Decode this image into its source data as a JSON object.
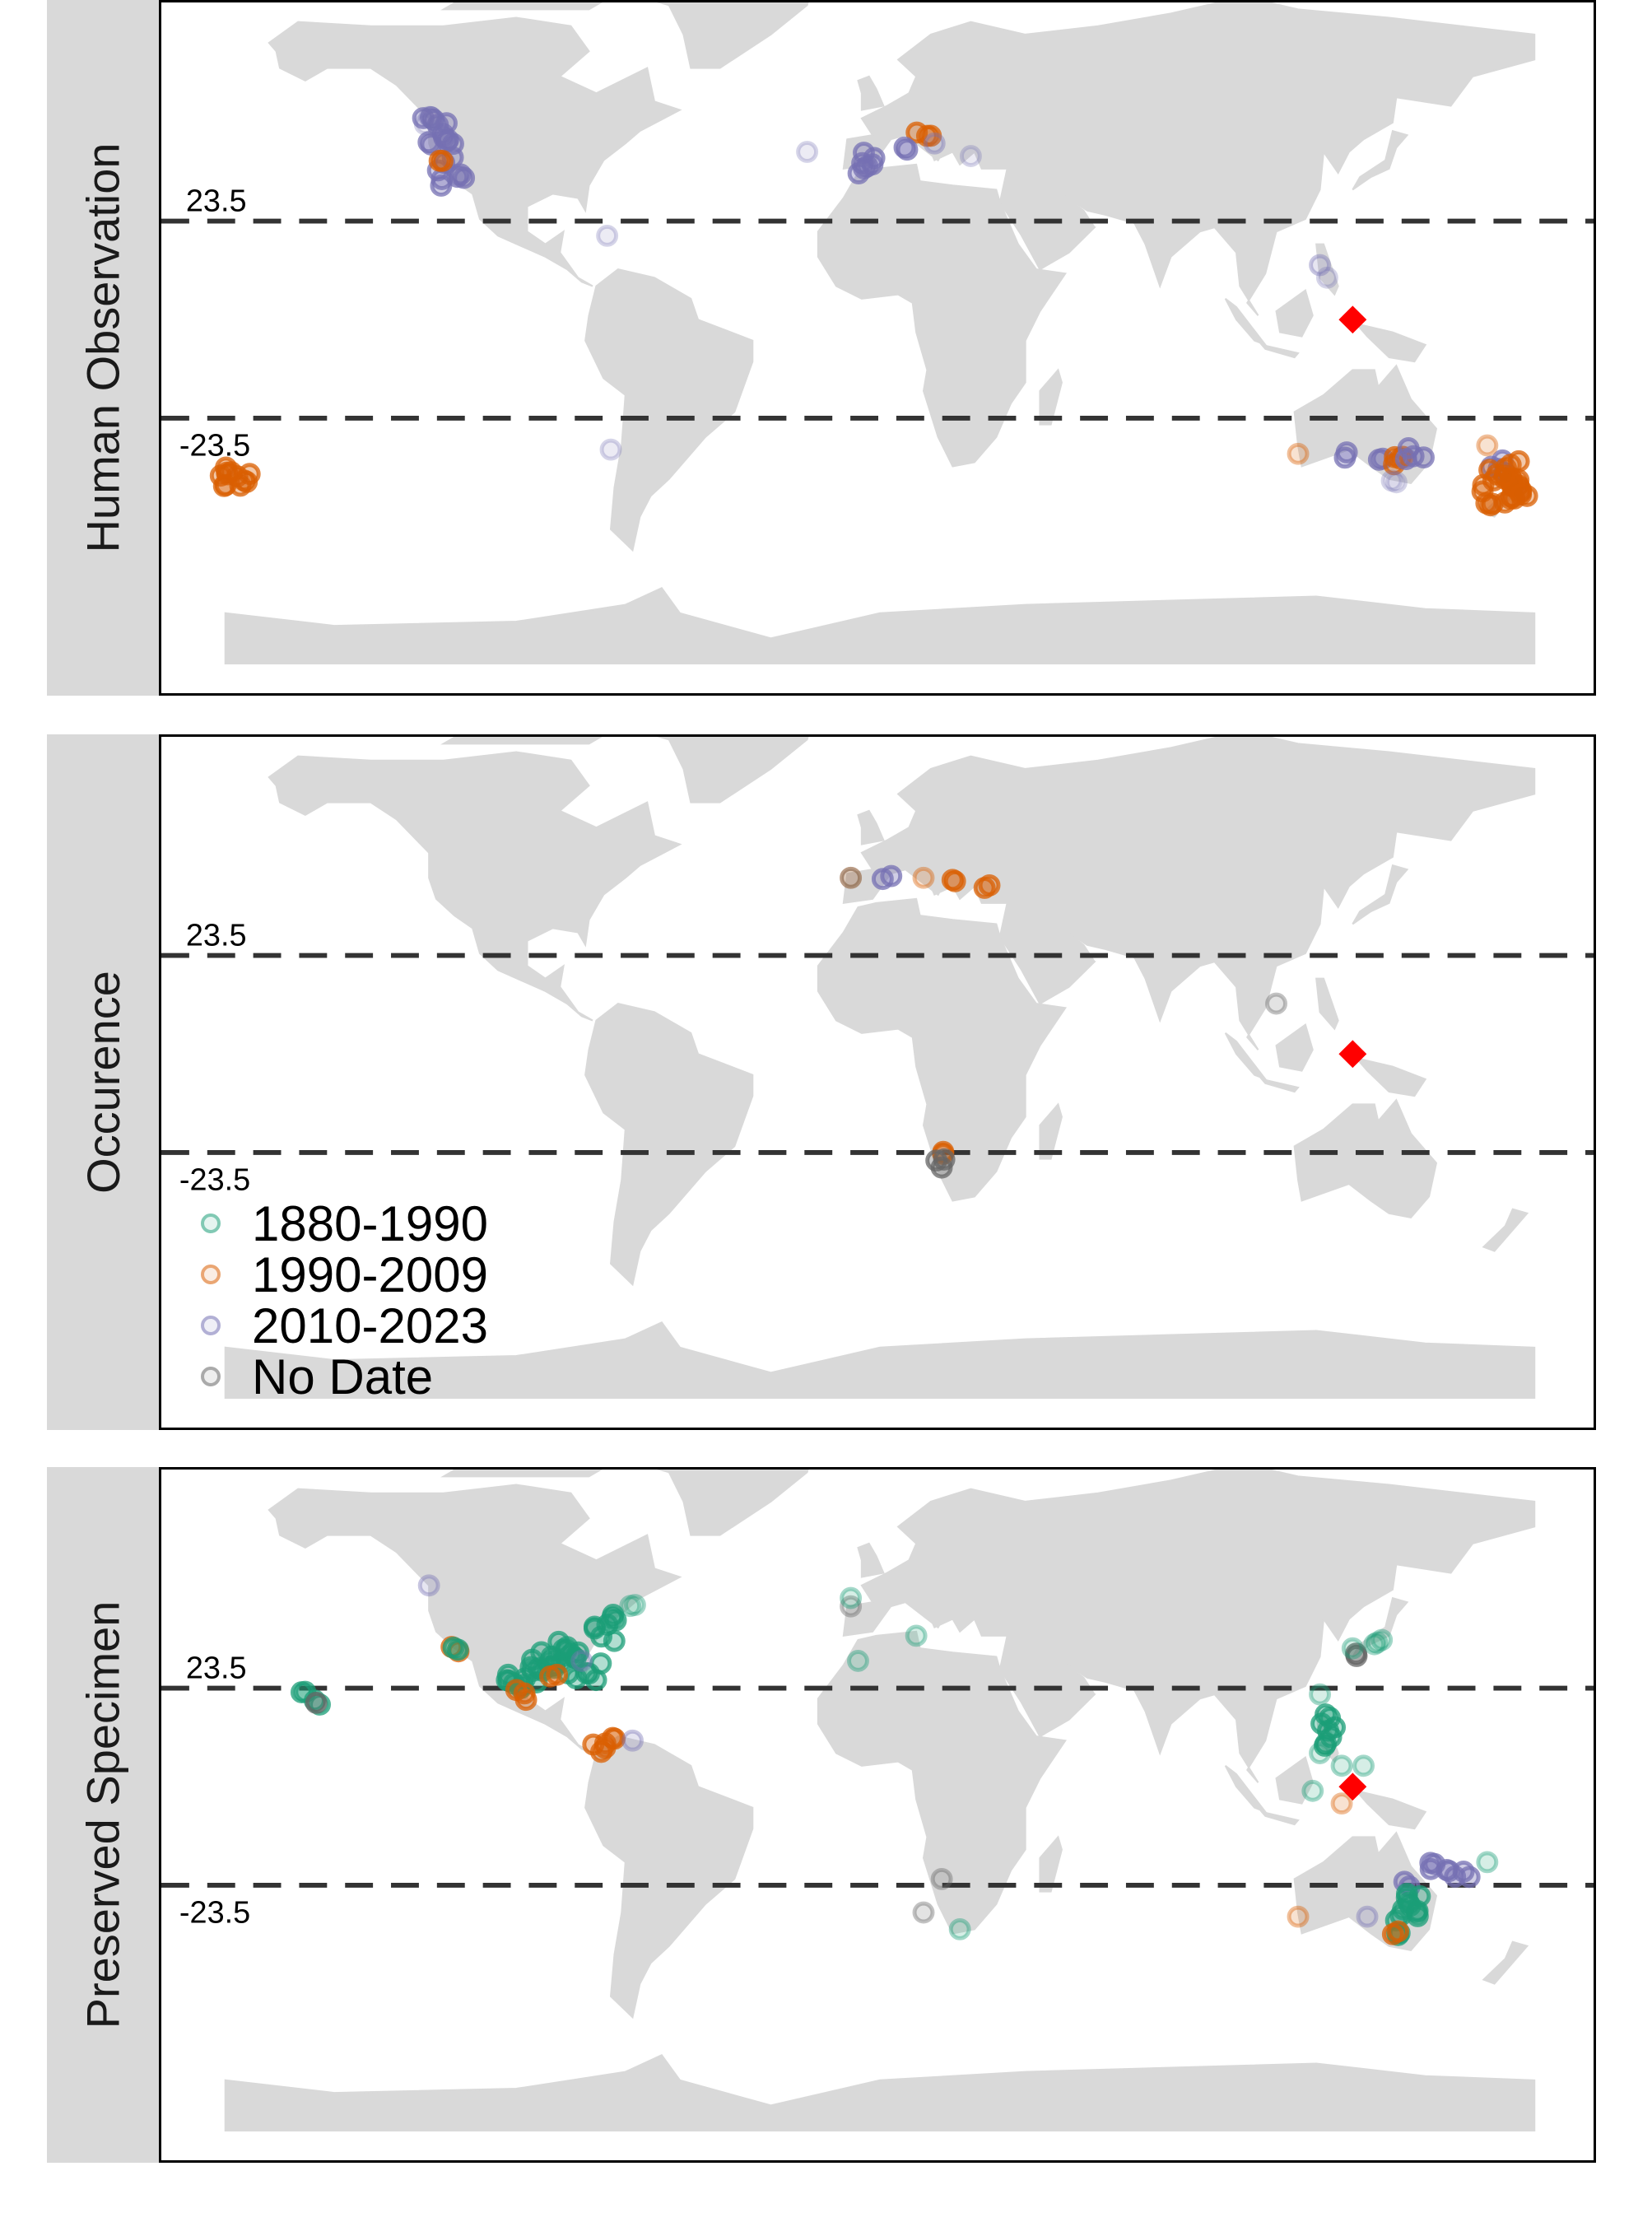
{
  "colors": {
    "land": "#d9d9d9",
    "c1880_1990": "#1b9e77",
    "c1990_2009": "#d95f02",
    "c2010_2023": "#7570b3",
    "cNoDate": "#666666",
    "marker": "#ff0000",
    "tropics_line": "#333333"
  },
  "tropics": {
    "north_label": "23.5",
    "south_label": "-23.5",
    "north_lat": 23.5,
    "south_lat": -23.5
  },
  "legend": {
    "items": [
      {
        "label": "1880-1990",
        "color_key": "c1880_1990"
      },
      {
        "label": "1990-2009",
        "color_key": "c1990_2009"
      },
      {
        "label": "2010-2023",
        "color_key": "c2010_2023"
      },
      {
        "label": "No Date",
        "color_key": "cNoDate"
      }
    ]
  },
  "panels": [
    {
      "label": "Human Observation",
      "marker": {
        "lon": 130,
        "lat": 0
      },
      "points": [
        {
          "lon": -124,
          "lat": 49,
          "p": "c2010_2023",
          "n": 3
        },
        {
          "lon": -122,
          "lat": 45,
          "p": "c2010_2023",
          "n": 5
        },
        {
          "lon": -121,
          "lat": 40,
          "p": "c2010_2023",
          "n": 6
        },
        {
          "lon": -118,
          "lat": 34,
          "p": "c2010_2023",
          "n": 6
        },
        {
          "lon": -120,
          "lat": 37,
          "p": "c1990_2009",
          "n": 2
        },
        {
          "lon": -124,
          "lat": 47,
          "p": "c2010_2023",
          "n": 3,
          "a": 0.3
        },
        {
          "lon": -2,
          "lat": 38,
          "p": "c2010_2023",
          "n": 4
        },
        {
          "lon": -4,
          "lat": 36,
          "p": "c2010_2023",
          "n": 3
        },
        {
          "lon": -20,
          "lat": 40,
          "p": "c2010_2023",
          "n": 1,
          "a": 0.3
        },
        {
          "lon": 12,
          "lat": 44,
          "p": "c1990_2009",
          "n": 3
        },
        {
          "lon": 8,
          "lat": 41,
          "p": "c2010_2023",
          "n": 2
        },
        {
          "lon": 15,
          "lat": 42,
          "p": "c2010_2023",
          "n": 1,
          "a": 0.4
        },
        {
          "lon": 25,
          "lat": 39,
          "p": "c2010_2023",
          "n": 1,
          "a": 0.3
        },
        {
          "lon": -75,
          "lat": 20,
          "p": "c2010_2023",
          "n": 1,
          "a": 0.3
        },
        {
          "lon": -74,
          "lat": -31,
          "p": "c2010_2023",
          "n": 1,
          "a": 0.3
        },
        {
          "lon": 121,
          "lat": 13,
          "p": "c2010_2023",
          "n": 1,
          "a": 0.4
        },
        {
          "lon": 123,
          "lat": 10,
          "p": "c2010_2023",
          "n": 1,
          "a": 0.3
        },
        {
          "lon": 115,
          "lat": -32,
          "p": "c1990_2009",
          "n": 1,
          "a": 0.4
        },
        {
          "lon": 128,
          "lat": -32,
          "p": "c2010_2023",
          "n": 2
        },
        {
          "lon": 138,
          "lat": -34,
          "p": "c2010_2023",
          "n": 2
        },
        {
          "lon": 144,
          "lat": -33,
          "p": "c1990_2009",
          "n": 4
        },
        {
          "lon": 147,
          "lat": -32,
          "p": "c2010_2023",
          "n": 4
        },
        {
          "lon": 141,
          "lat": -38,
          "p": "c2010_2023",
          "n": 2,
          "a": 0.3
        },
        {
          "lon": 170,
          "lat": -35,
          "p": "c2010_2023",
          "n": 4
        },
        {
          "lon": 172,
          "lat": -37,
          "p": "c1990_2009",
          "n": 10
        },
        {
          "lon": 170,
          "lat": -41,
          "p": "c1990_2009",
          "n": 12
        },
        {
          "lon": 174,
          "lat": -39,
          "p": "c1990_2009",
          "n": 8
        },
        {
          "lon": 167,
          "lat": -30,
          "p": "c1990_2009",
          "n": 1,
          "a": 0.4
        },
        {
          "lon": -177,
          "lat": -38,
          "p": "c1990_2009",
          "n": 8
        },
        {
          "lon": -179,
          "lat": -38,
          "p": "c1990_2009",
          "n": 4
        }
      ]
    },
    {
      "label": "Occurence",
      "marker": {
        "lon": 130,
        "lat": 0
      },
      "points": [
        {
          "lon": -8,
          "lat": 42,
          "p": "c1990_2009",
          "n": 1,
          "a": 0.4
        },
        {
          "lon": -8,
          "lat": 42,
          "p": "cNoDate",
          "n": 1,
          "a": 0.4
        },
        {
          "lon": 2,
          "lat": 42,
          "p": "c2010_2023",
          "n": 2
        },
        {
          "lon": 12,
          "lat": 42,
          "p": "c1990_2009",
          "n": 1,
          "a": 0.4
        },
        {
          "lon": 20,
          "lat": 42,
          "p": "c1990_2009",
          "n": 2
        },
        {
          "lon": 29,
          "lat": 40,
          "p": "c1990_2009",
          "n": 2
        },
        {
          "lon": 109,
          "lat": 12,
          "p": "cNoDate",
          "n": 1,
          "a": 0.4
        },
        {
          "lon": 17,
          "lat": -24,
          "p": "c1990_2009",
          "n": 2
        },
        {
          "lon": 16,
          "lat": -26,
          "p": "cNoDate",
          "n": 3
        }
      ]
    },
    {
      "label": "Preserved Specimen",
      "marker": {
        "lon": 130,
        "lat": 0
      },
      "points": [
        {
          "lon": -124,
          "lat": 48,
          "p": "c2010_2023",
          "n": 1,
          "a": 0.4
        },
        {
          "lon": -117,
          "lat": 33,
          "p": "c1990_2009",
          "n": 2
        },
        {
          "lon": -117,
          "lat": 33,
          "p": "c1880_1990",
          "n": 2
        },
        {
          "lon": -158,
          "lat": 22,
          "p": "c1880_1990",
          "n": 2
        },
        {
          "lon": -155,
          "lat": 20,
          "p": "c1880_1990",
          "n": 2
        },
        {
          "lon": -155,
          "lat": 20,
          "p": "cNoDate",
          "n": 1
        },
        {
          "lon": -100,
          "lat": 25,
          "p": "c1880_1990",
          "n": 6
        },
        {
          "lon": -95,
          "lat": 28,
          "p": "c1880_1990",
          "n": 8
        },
        {
          "lon": -90,
          "lat": 30,
          "p": "c1880_1990",
          "n": 8
        },
        {
          "lon": -85,
          "lat": 32,
          "p": "c1880_1990",
          "n": 6
        },
        {
          "lon": -80,
          "lat": 28,
          "p": "c1880_1990",
          "n": 6
        },
        {
          "lon": -98,
          "lat": 22,
          "p": "c1990_2009",
          "n": 3
        },
        {
          "lon": -90,
          "lat": 26,
          "p": "c1990_2009",
          "n": 2
        },
        {
          "lon": -82,
          "lat": 30,
          "p": "c2010_2023",
          "n": 1,
          "a": 0.4
        },
        {
          "lon": -76,
          "lat": 37,
          "p": "c1880_1990",
          "n": 5
        },
        {
          "lon": -72,
          "lat": 41,
          "p": "c1880_1990",
          "n": 3
        },
        {
          "lon": -68,
          "lat": 43,
          "p": "c1880_1990",
          "n": 2,
          "a": 0.4
        },
        {
          "lon": -78,
          "lat": 9,
          "p": "c1990_2009",
          "n": 4
        },
        {
          "lon": -73,
          "lat": 12,
          "p": "c1990_2009",
          "n": 2
        },
        {
          "lon": -68,
          "lat": 11,
          "p": "c2010_2023",
          "n": 1,
          "a": 0.4
        },
        {
          "lon": -8,
          "lat": 43,
          "p": "cNoDate",
          "n": 1,
          "a": 0.4
        },
        {
          "lon": -8,
          "lat": 45,
          "p": "c1880_1990",
          "n": 1,
          "a": 0.4
        },
        {
          "lon": -6,
          "lat": 30,
          "p": "c1880_1990",
          "n": 1,
          "a": 0.4
        },
        {
          "lon": 10,
          "lat": 36,
          "p": "c1880_1990",
          "n": 1,
          "a": 0.4
        },
        {
          "lon": 17,
          "lat": -22,
          "p": "cNoDate",
          "n": 1,
          "a": 0.4
        },
        {
          "lon": 12,
          "lat": -30,
          "p": "cNoDate",
          "n": 1,
          "a": 0.4
        },
        {
          "lon": 22,
          "lat": -34,
          "p": "c1880_1990",
          "n": 1,
          "a": 0.4
        },
        {
          "lon": 131,
          "lat": 32,
          "p": "cNoDate",
          "n": 2
        },
        {
          "lon": 130,
          "lat": 33,
          "p": "c1880_1990",
          "n": 1,
          "a": 0.4
        },
        {
          "lon": 136,
          "lat": 34,
          "p": "c1880_1990",
          "n": 2,
          "a": 0.4
        },
        {
          "lon": 138,
          "lat": 35,
          "p": "c1880_1990",
          "n": 1,
          "a": 0.4
        },
        {
          "lon": 121,
          "lat": 22,
          "p": "c1880_1990",
          "n": 1,
          "a": 0.4
        },
        {
          "lon": 122,
          "lat": 16,
          "p": "c1880_1990",
          "n": 3
        },
        {
          "lon": 124,
          "lat": 13,
          "p": "c1880_1990",
          "n": 3
        },
        {
          "lon": 123,
          "lat": 10,
          "p": "c1880_1990",
          "n": 2
        },
        {
          "lon": 121,
          "lat": 8,
          "p": "c1880_1990",
          "n": 1,
          "a": 0.4
        },
        {
          "lon": 127,
          "lat": 5,
          "p": "c1880_1990",
          "n": 1,
          "a": 0.4
        },
        {
          "lon": 133,
          "lat": 5,
          "p": "c1880_1990",
          "n": 1,
          "a": 0.4
        },
        {
          "lon": 119,
          "lat": -1,
          "p": "c1880_1990",
          "n": 1,
          "a": 0.4
        },
        {
          "lon": 127,
          "lat": -4,
          "p": "c1990_2009",
          "n": 1,
          "a": 0.4
        },
        {
          "lon": 152,
          "lat": -19,
          "p": "c2010_2023",
          "n": 3
        },
        {
          "lon": 157,
          "lat": -21,
          "p": "c2010_2023",
          "n": 3
        },
        {
          "lon": 161,
          "lat": -21,
          "p": "c2010_2023",
          "n": 2
        },
        {
          "lon": 145,
          "lat": -23,
          "p": "c2010_2023",
          "n": 2
        },
        {
          "lon": 167,
          "lat": -18,
          "p": "c1880_1990",
          "n": 1,
          "a": 0.4
        },
        {
          "lon": 147,
          "lat": -26,
          "p": "c1880_1990",
          "n": 4
        },
        {
          "lon": 145,
          "lat": -30,
          "p": "c1880_1990",
          "n": 5
        },
        {
          "lon": 143,
          "lat": -33,
          "p": "c1880_1990",
          "n": 5
        },
        {
          "lon": 142,
          "lat": -35,
          "p": "c1990_2009",
          "n": 2
        },
        {
          "lon": 134,
          "lat": -31,
          "p": "c2010_2023",
          "n": 1,
          "a": 0.4
        },
        {
          "lon": 115,
          "lat": -31,
          "p": "c1990_2009",
          "n": 1,
          "a": 0.4
        }
      ]
    }
  ]
}
